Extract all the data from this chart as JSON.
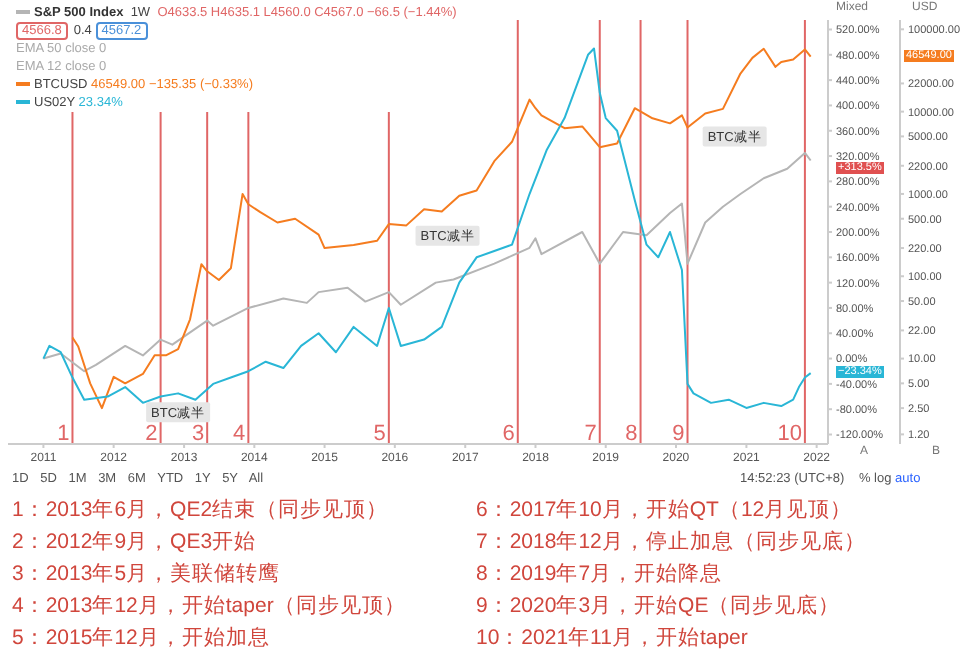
{
  "chart_data": {
    "type": "line",
    "ylabel": "Mixed",
    "y2label": "USD",
    "log": "y2",
    "legend": "top left",
    "xlim": [
      "2010-07",
      "2022-03"
    ],
    "xticks": [
      "2011",
      "2012",
      "2013",
      "2014",
      "2015",
      "2016",
      "2017",
      "2018",
      "2019",
      "2020",
      "2021",
      "2022"
    ],
    "ylim": [
      -135,
      535
    ],
    "yticks": [
      {
        "value": -120,
        "label": "-120.00%"
      },
      {
        "value": -80,
        "label": "-80.00%"
      },
      {
        "value": -40,
        "label": "-40.00%"
      },
      {
        "value": 0,
        "label": "0.00%"
      },
      {
        "value": 40,
        "label": "40.00%"
      },
      {
        "value": 80,
        "label": "80.00%"
      },
      {
        "value": 120,
        "label": "120.00%"
      },
      {
        "value": 160,
        "label": "160.00%"
      },
      {
        "value": 200,
        "label": "200.00%"
      },
      {
        "value": 240,
        "label": "240.00%"
      },
      {
        "value": 280,
        "label": "280.00%"
      },
      {
        "value": 320,
        "label": "320.00%"
      },
      {
        "value": 360,
        "label": "360.00%"
      },
      {
        "value": 400,
        "label": "400.00%"
      },
      {
        "value": 440,
        "label": "440.00%"
      },
      {
        "value": 480,
        "label": "480.00%"
      },
      {
        "value": 520,
        "label": "520.00%"
      }
    ],
    "y2lim": [
      0.917,
      129700
    ],
    "y2ticks": [
      {
        "value": 1.2,
        "label": "1.20"
      },
      {
        "value": 2.5,
        "label": "2.50"
      },
      {
        "value": 5,
        "label": "5.00"
      },
      {
        "value": 10,
        "label": "10.00"
      },
      {
        "value": 22,
        "label": "22.00"
      },
      {
        "value": 50,
        "label": "50.00"
      },
      {
        "value": 100,
        "label": "100.00"
      },
      {
        "value": 220,
        "label": "220.00"
      },
      {
        "value": 500,
        "label": "500.00"
      },
      {
        "value": 1000,
        "label": "1000.00"
      },
      {
        "value": 2200,
        "label": "2200.00"
      },
      {
        "value": 5000,
        "label": "5000.00"
      },
      {
        "value": 10000,
        "label": "10000.00"
      },
      {
        "value": 22000,
        "label": "22000.00"
      },
      {
        "value": 100000,
        "label": "100000.00"
      }
    ],
    "series": [
      {
        "name": "S&P 500 Index",
        "color": "#b5b5b5",
        "x": [
          "2011-01",
          "2011-04",
          "2011-08",
          "2011-10",
          "2012-03",
          "2012-06",
          "2012-09",
          "2012-11",
          "2013-05",
          "2013-06",
          "2013-12",
          "2014-06",
          "2014-10",
          "2014-12",
          "2015-05",
          "2015-08",
          "2015-12",
          "2016-02",
          "2016-08",
          "2016-11",
          "2017-06",
          "2017-12",
          "2018-01",
          "2018-02",
          "2018-09",
          "2018-12",
          "2019-04",
          "2019-08",
          "2019-12",
          "2020-02",
          "2020-03",
          "2020-06",
          "2020-09",
          "2020-12",
          "2021-04",
          "2021-08",
          "2021-11",
          "2021-12"
        ],
        "values": [
          0,
          8,
          -20,
          -10,
          20,
          5,
          30,
          22,
          60,
          52,
          80,
          95,
          88,
          105,
          112,
          90,
          105,
          85,
          120,
          125,
          150,
          175,
          190,
          165,
          200,
          150,
          200,
          195,
          230,
          245,
          150,
          215,
          240,
          260,
          285,
          300,
          325,
          313
        ]
      },
      {
        "name": "BTCUSD",
        "color": "#f57c1f",
        "axis": "y2",
        "x": [
          "2011-06",
          "2011-07",
          "2011-09",
          "2011-11",
          "2012-01",
          "2012-03",
          "2012-06",
          "2012-08",
          "2012-10",
          "2012-12",
          "2013-02",
          "2013-04",
          "2013-05",
          "2013-07",
          "2013-09",
          "2013-11",
          "2013-12",
          "2014-02",
          "2014-05",
          "2014-08",
          "2014-12",
          "2015-01",
          "2015-06",
          "2015-10",
          "2015-12",
          "2016-03",
          "2016-06",
          "2016-09",
          "2016-12",
          "2017-03",
          "2017-06",
          "2017-09",
          "2017-12",
          "2018-01",
          "2018-02",
          "2018-06",
          "2018-09",
          "2018-12",
          "2019-03",
          "2019-06",
          "2019-09",
          "2019-12",
          "2020-02",
          "2020-03",
          "2020-06",
          "2020-09",
          "2020-12",
          "2021-02",
          "2021-04",
          "2021-06",
          "2021-07",
          "2021-09",
          "2021-11",
          "2021-12"
        ],
        "values": [
          18,
          14,
          5,
          2.5,
          6,
          5,
          6.5,
          11,
          11,
          13,
          30,
          140,
          115,
          90,
          125,
          1000,
          750,
          600,
          450,
          500,
          320,
          220,
          240,
          270,
          430,
          415,
          650,
          610,
          950,
          1100,
          2500,
          4300,
          14000,
          11000,
          9000,
          6300,
          6600,
          3700,
          4100,
          11000,
          8300,
          7200,
          9000,
          6400,
          9500,
          10800,
          29000,
          45000,
          58000,
          35000,
          40000,
          43000,
          57000,
          46549
        ]
      },
      {
        "name": "US02Y",
        "color": "#29b6d6",
        "x": [
          "2011-01",
          "2011-02",
          "2011-04",
          "2011-06",
          "2011-08",
          "2011-12",
          "2012-03",
          "2012-06",
          "2012-09",
          "2012-12",
          "2013-03",
          "2013-06",
          "2013-09",
          "2013-12",
          "2014-03",
          "2014-06",
          "2014-09",
          "2014-12",
          "2015-03",
          "2015-06",
          "2015-10",
          "2015-12",
          "2016-02",
          "2016-06",
          "2016-09",
          "2016-12",
          "2017-03",
          "2017-06",
          "2017-09",
          "2017-12",
          "2018-03",
          "2018-06",
          "2018-10",
          "2018-11",
          "2018-12",
          "2019-01",
          "2019-03",
          "2019-06",
          "2019-08",
          "2019-10",
          "2019-12",
          "2020-02",
          "2020-03",
          "2020-04",
          "2020-07",
          "2020-10",
          "2021-01",
          "2021-04",
          "2021-07",
          "2021-09",
          "2021-10",
          "2021-11",
          "2021-12"
        ],
        "values": [
          0,
          20,
          10,
          -30,
          -65,
          -60,
          -45,
          -70,
          -60,
          -55,
          -65,
          -40,
          -30,
          -20,
          -5,
          -15,
          20,
          40,
          10,
          50,
          20,
          80,
          20,
          30,
          50,
          120,
          160,
          170,
          180,
          260,
          330,
          380,
          480,
          490,
          420,
          380,
          360,
          250,
          180,
          160,
          200,
          140,
          -40,
          -55,
          -70,
          -65,
          -78,
          -70,
          -75,
          -65,
          -45,
          -30,
          -23
        ]
      }
    ],
    "ref_lines": [
      {
        "axis": "x",
        "value": "2011-06",
        "label": "1",
        "color": "#e06666"
      },
      {
        "axis": "x",
        "value": "2012-09",
        "label": "2",
        "color": "#e06666"
      },
      {
        "axis": "x",
        "value": "2013-05",
        "label": "3",
        "color": "#e06666"
      },
      {
        "axis": "x",
        "value": "2013-12",
        "label": "4",
        "color": "#e06666"
      },
      {
        "axis": "x",
        "value": "2015-12",
        "label": "5",
        "color": "#e06666"
      },
      {
        "axis": "x",
        "value": "2017-10",
        "label": "6",
        "color": "#e06666"
      },
      {
        "axis": "x",
        "value": "2018-12",
        "label": "7",
        "color": "#e06666"
      },
      {
        "axis": "x",
        "value": "2019-07",
        "label": "8",
        "color": "#e06666"
      },
      {
        "axis": "x",
        "value": "2020-03",
        "label": "9",
        "color": "#e06666"
      },
      {
        "axis": "x",
        "value": "2021-11",
        "label": "10",
        "color": "#e06666"
      }
    ],
    "annotations": [
      "1W",
      "4566.8",
      "0.4",
      "4567.2",
      "O4633.5 H4635.1 L4560.0 C4567.0 −66.5 (−1.44%)",
      "EMA 50 close 0",
      "EMA 12 close 0",
      "46549.00 −135.35 (−0.33%)",
      "23.34%",
      "46549.00",
      "+313.5%",
      "−23.34%",
      "A",
      "B",
      "1D 5D 1M 3M 6M YTD 1Y 5Y All",
      "14:52:23 (UTC+8)",
      "%",
      "log",
      "auto",
      "1：2013年6月，QE2结束（同步见顶）",
      "2：2012年9月，QE3开始",
      "3：2013年5月，美联储转鹰",
      "4：2013年12月，开始taper（同步见顶）",
      "5：2015年12月，开始加息",
      "6：2017年10月，开始QT（12月见顶）",
      "7：2018年12月，停止加息（同步见底）",
      "8：2019年7月，开始降息",
      "9：2020年3月，开始QE（同步见底）",
      "10：2021年11月，开始taper",
      {
        "text": "BTC减半",
        "x": "2012-12",
        "y": -85
      },
      {
        "text": "BTC减半",
        "x": "2016-10",
        "y": 194
      },
      {
        "text": "BTC减半",
        "x": "2020-11",
        "y": 351
      }
    ]
  }
}
